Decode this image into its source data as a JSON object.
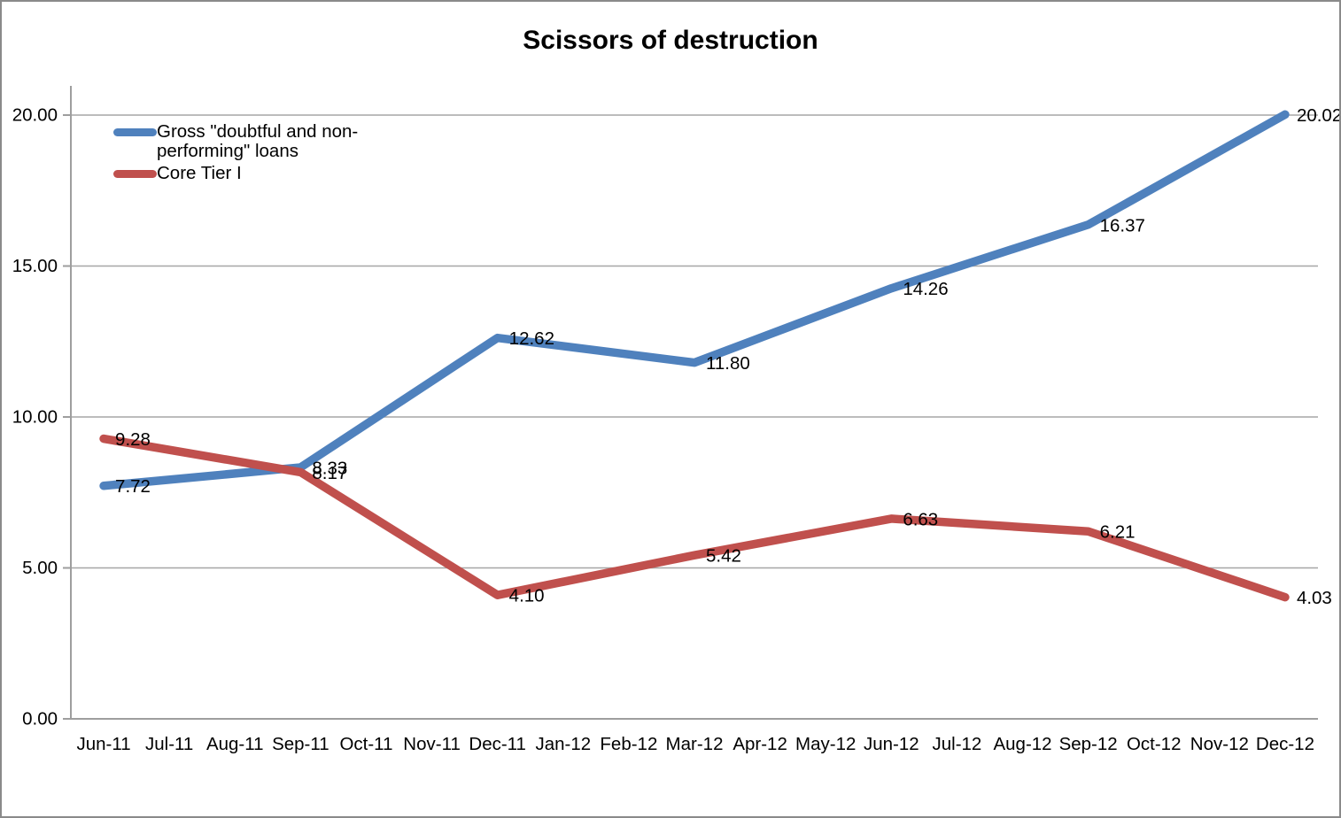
{
  "title": "Scissors of destruction",
  "legend": {
    "items": [
      {
        "label": "Gross \"doubtful and non-performing\" loans",
        "color": "#4F81BD"
      },
      {
        "label": "Core Tier I",
        "color": "#C0504D"
      }
    ]
  },
  "chart_data": {
    "type": "line",
    "title": "Scissors of destruction",
    "xlabel": "",
    "ylabel": "",
    "grid": true,
    "legend_position": "inside-top-left",
    "ylim": [
      0,
      21
    ],
    "y_ticks": [
      {
        "value": 0,
        "label": "0.00"
      },
      {
        "value": 5,
        "label": "5.00"
      },
      {
        "value": 10,
        "label": "10.00"
      },
      {
        "value": 15,
        "label": "15.00"
      },
      {
        "value": 20,
        "label": "20.00"
      }
    ],
    "x_tick_labels": [
      "Jun-11",
      "Jul-11",
      "Aug-11",
      "Sep-11",
      "Oct-11",
      "Nov-11",
      "Dec-11",
      "Jan-12",
      "Feb-12",
      "Mar-12",
      "Apr-12",
      "May-12",
      "Jun-12",
      "Jul-12",
      "Aug-12",
      "Sep-12",
      "Oct-12",
      "Nov-12",
      "Dec-12"
    ],
    "categories": [
      "Jun-11",
      "Sep-11",
      "Dec-11",
      "Mar-12",
      "Jun-12",
      "Sep-12",
      "Dec-12"
    ],
    "category_indices": [
      0,
      3,
      6,
      9,
      12,
      15,
      18
    ],
    "series": [
      {
        "name": "Gross \"doubtful and non-performing\" loans",
        "color": "#4F81BD",
        "values": [
          7.72,
          8.33,
          12.62,
          11.8,
          14.26,
          16.37,
          20.02
        ],
        "labels": [
          "7.72",
          "8.33",
          "12.62",
          "11.80",
          "14.26",
          "16.37",
          "20.02"
        ]
      },
      {
        "name": "Core Tier I",
        "color": "#C0504D",
        "values": [
          9.28,
          8.17,
          4.1,
          5.42,
          6.63,
          6.21,
          4.03
        ],
        "labels": [
          "9.28",
          "8.17",
          "4.10",
          "5.42",
          "6.63",
          "6.21",
          "4.03"
        ]
      }
    ],
    "colors": {
      "gridline": "#a6a6a6",
      "axis": "#9e9e9e",
      "label_text": "#000000"
    }
  }
}
